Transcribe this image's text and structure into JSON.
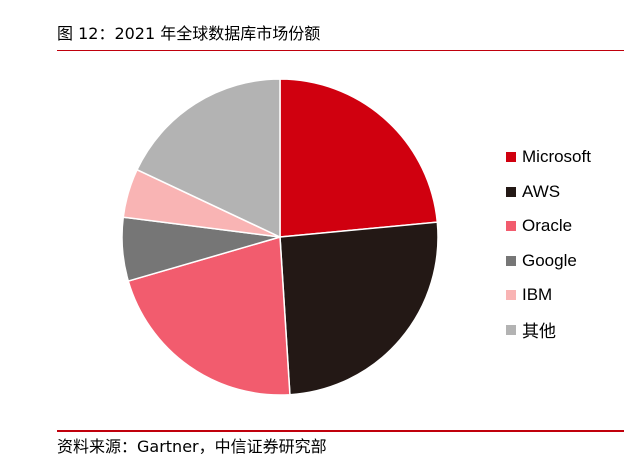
{
  "page": {
    "title": "图 12：2021 年全球数据库市场份额",
    "source": "资料来源：Gartner，中信证券研究部"
  },
  "chart_data": {
    "type": "pie",
    "title": "图 12：2021 年全球数据库市场份额",
    "start_angle": "12 o'clock, clockwise",
    "legend_position": "right",
    "slices": [
      {
        "label": "Microsoft",
        "value": 23.5,
        "color": "#d0000f"
      },
      {
        "label": "AWS",
        "value": 25.5,
        "color": "#231815"
      },
      {
        "label": "Oracle",
        "value": 21.5,
        "color": "#f25c6e"
      },
      {
        "label": "Google",
        "value": 6.5,
        "color": "#767676"
      },
      {
        "label": "IBM",
        "value": 5.0,
        "color": "#f9b4b4"
      },
      {
        "label": "其他",
        "value": 18.0,
        "color": "#b3b3b3"
      }
    ]
  }
}
